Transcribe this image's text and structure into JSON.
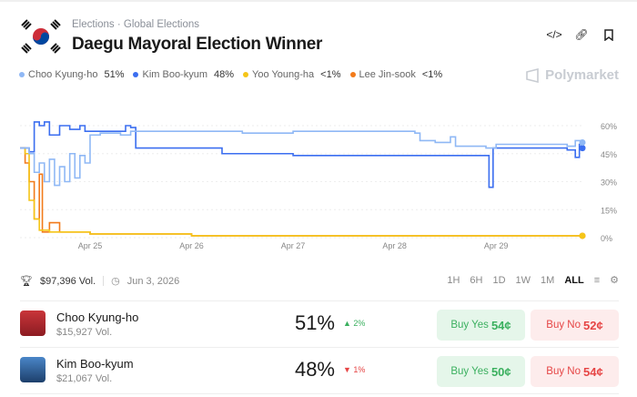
{
  "header": {
    "breadcrumb": [
      "Elections",
      "Global Elections"
    ],
    "title": "Daegu Mayoral Election Winner",
    "brand": "Polymarket"
  },
  "legend": [
    {
      "name": "Choo Kyung-ho",
      "value": "51%",
      "color": "#8fb8f5"
    },
    {
      "name": "Kim Boo-kyum",
      "value": "48%",
      "color": "#3b6ef0"
    },
    {
      "name": "Yoo Young-ha",
      "value": "<1%",
      "color": "#f5c518"
    },
    {
      "name": "Lee Jin-sook",
      "value": "<1%",
      "color": "#f27a1a"
    }
  ],
  "chart_data": {
    "type": "line",
    "x_unit": "days since Apr 24",
    "xlim": [
      0.31,
      5.85
    ],
    "ylim": [
      0,
      65
    ],
    "xticks": [
      {
        "v": 1,
        "label": "Apr 25"
      },
      {
        "v": 2,
        "label": "Apr 26"
      },
      {
        "v": 3,
        "label": "Apr 27"
      },
      {
        "v": 4,
        "label": "Apr 28"
      },
      {
        "v": 5,
        "label": "Apr 29"
      }
    ],
    "yticks": [
      {
        "v": 0,
        "label": "0%"
      },
      {
        "v": 15,
        "label": "15%"
      },
      {
        "v": 30,
        "label": "30%"
      },
      {
        "v": 45,
        "label": "45%"
      },
      {
        "v": 60,
        "label": "60%"
      }
    ],
    "series": [
      {
        "name": "Choo Kyung-ho",
        "color": "#8fb8f5",
        "points": [
          [
            0.31,
            48
          ],
          [
            0.4,
            45
          ],
          [
            0.45,
            35
          ],
          [
            0.5,
            40
          ],
          [
            0.55,
            30
          ],
          [
            0.6,
            42
          ],
          [
            0.65,
            28
          ],
          [
            0.7,
            38
          ],
          [
            0.75,
            30
          ],
          [
            0.8,
            45
          ],
          [
            0.85,
            32
          ],
          [
            0.9,
            44
          ],
          [
            0.95,
            40
          ],
          [
            1.0,
            55
          ],
          [
            1.1,
            56
          ],
          [
            1.3,
            55
          ],
          [
            1.4,
            57
          ],
          [
            2.0,
            57
          ],
          [
            2.5,
            56
          ],
          [
            3.0,
            57
          ],
          [
            3.5,
            57
          ],
          [
            4.0,
            57
          ],
          [
            4.2,
            56
          ],
          [
            4.25,
            52
          ],
          [
            4.4,
            51
          ],
          [
            4.55,
            54
          ],
          [
            4.6,
            49
          ],
          [
            4.9,
            48
          ],
          [
            5.0,
            50
          ],
          [
            5.5,
            50
          ],
          [
            5.7,
            49
          ],
          [
            5.78,
            52
          ],
          [
            5.85,
            51
          ]
        ]
      },
      {
        "name": "Kim Boo-kyum",
        "color": "#3b6ef0",
        "points": [
          [
            0.31,
            48
          ],
          [
            0.4,
            46
          ],
          [
            0.45,
            62
          ],
          [
            0.5,
            60
          ],
          [
            0.55,
            62
          ],
          [
            0.6,
            55
          ],
          [
            0.7,
            60
          ],
          [
            0.8,
            58
          ],
          [
            0.9,
            60
          ],
          [
            0.95,
            57
          ],
          [
            1.3,
            57
          ],
          [
            1.35,
            60
          ],
          [
            1.4,
            59
          ],
          [
            1.45,
            48
          ],
          [
            1.8,
            48
          ],
          [
            2.2,
            48
          ],
          [
            2.3,
            45
          ],
          [
            3.0,
            44
          ],
          [
            4.0,
            44
          ],
          [
            4.9,
            44
          ],
          [
            4.93,
            27
          ],
          [
            4.97,
            48
          ],
          [
            5.5,
            48
          ],
          [
            5.7,
            47
          ],
          [
            5.78,
            43
          ],
          [
            5.82,
            50
          ],
          [
            5.85,
            48
          ]
        ]
      },
      {
        "name": "Yoo Young-ha",
        "color": "#f5c518",
        "points": [
          [
            0.31,
            48
          ],
          [
            0.36,
            45
          ],
          [
            0.4,
            20
          ],
          [
            0.45,
            10
          ],
          [
            0.5,
            4
          ],
          [
            0.6,
            3
          ],
          [
            1.0,
            2
          ],
          [
            2.0,
            1
          ],
          [
            3.0,
            1
          ],
          [
            4.0,
            1
          ],
          [
            5.0,
            1
          ],
          [
            5.85,
            1
          ]
        ]
      },
      {
        "name": "Lee Jin-sook",
        "color": "#f27a1a",
        "points": [
          [
            0.31,
            48
          ],
          [
            0.36,
            40
          ],
          [
            0.4,
            30
          ],
          [
            0.45,
            10
          ],
          [
            0.5,
            34
          ],
          [
            0.53,
            3
          ],
          [
            0.6,
            8
          ],
          [
            0.7,
            3
          ],
          [
            1.0,
            2
          ],
          [
            2.0,
            1
          ],
          [
            3.0,
            1
          ],
          [
            4.0,
            1
          ],
          [
            5.0,
            1
          ],
          [
            5.85,
            1
          ]
        ]
      }
    ]
  },
  "meta": {
    "volume": "$97,396 Vol.",
    "date": "Jun 3, 2026"
  },
  "ranges": [
    "1H",
    "6H",
    "1D",
    "1W",
    "1M",
    "ALL"
  ],
  "outcomes": [
    {
      "name": "Choo Kyung-ho",
      "vol": "$15,927 Vol.",
      "pct": "51%",
      "change": "▲ 2%",
      "dir": "up",
      "yes_label": "Buy Yes",
      "yes_price": "54¢",
      "no_label": "Buy No",
      "no_price": "52¢"
    },
    {
      "name": "Kim Boo-kyum",
      "vol": "$21,067 Vol.",
      "pct": "48%",
      "change": "▼ 1%",
      "dir": "down",
      "yes_label": "Buy Yes",
      "yes_price": "50¢",
      "no_label": "Buy No",
      "no_price": "54¢"
    }
  ]
}
